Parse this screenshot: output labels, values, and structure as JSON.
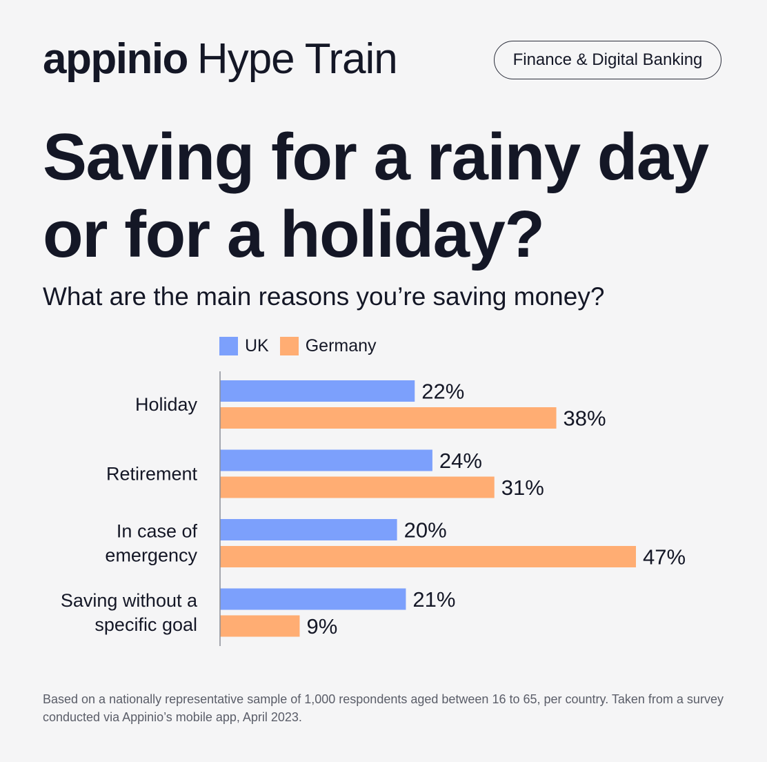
{
  "header": {
    "brand": "appinio",
    "product": "Hype Train",
    "category_pill": "Finance & Digital Banking"
  },
  "title": "Saving for a rainy day or for a holiday?",
  "subtitle": "What are the main reasons you’re saving money?",
  "colors": {
    "background": "#f5f5f6",
    "text": "#141726",
    "uk": "#7ca0fc",
    "germany": "#ffad73"
  },
  "chart_data": {
    "type": "bar",
    "orientation": "horizontal",
    "categories": [
      [
        "Holiday"
      ],
      [
        "Retirement"
      ],
      [
        "In case of",
        "emergency"
      ],
      [
        "Saving without a",
        "specific goal"
      ]
    ],
    "series": [
      {
        "name": "UK",
        "color": "#7ca0fc",
        "values": [
          22,
          24,
          20,
          21
        ],
        "labels": [
          "22%",
          "24%",
          "20%",
          "21%"
        ]
      },
      {
        "name": "Germany",
        "color": "#ffad73",
        "values": [
          38,
          31,
          47,
          9
        ],
        "labels": [
          "38%",
          "31%",
          "47%",
          "9%"
        ]
      }
    ],
    "unit": "%",
    "xlim": [
      0,
      47
    ],
    "grid": false,
    "legend_position": "top-left"
  },
  "footnote": "Based on a nationally representative sample of 1,000 respondents aged between 16 to 65, per country. Taken from a survey conducted via Appinio’s mobile app, April 2023."
}
